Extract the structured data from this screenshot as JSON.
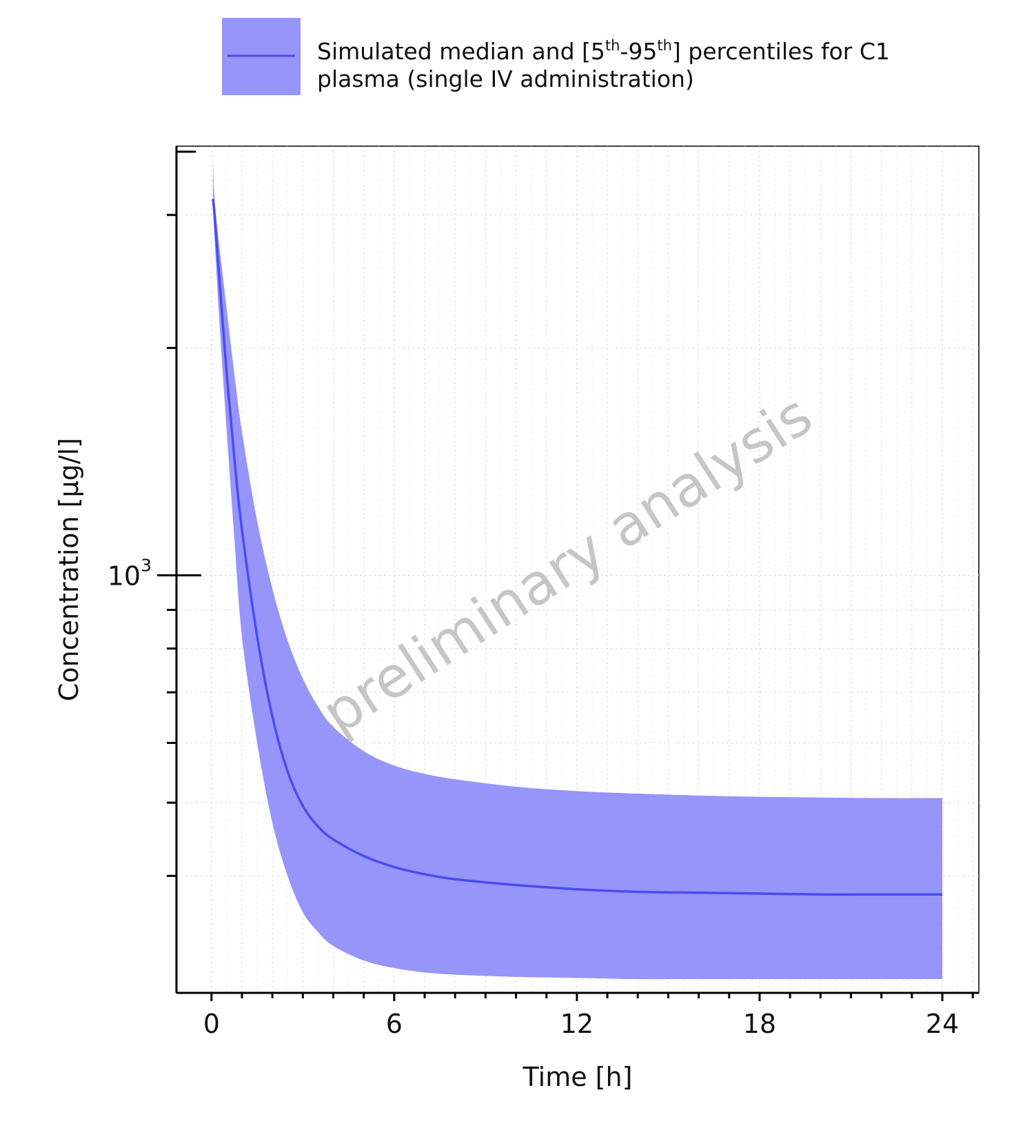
{
  "chart_data": {
    "type": "area",
    "xlabel": "Time [h]",
    "ylabel": "Concentration [µg/l]",
    "xlim": [
      -1.15,
      25.2
    ],
    "ylim": [
      280,
      3700
    ],
    "yscale": "log",
    "x_ticks": [
      0,
      6,
      12,
      18,
      24
    ],
    "x_minor_step": 1,
    "y_major_ticks": [
      {
        "value": 1000,
        "base": "10",
        "exponent": "3"
      }
    ],
    "y_minor_ticks": [
      400,
      500,
      600,
      700,
      800,
      900,
      2000,
      3000
    ],
    "grid": true,
    "legend": {
      "position": "top",
      "line1_prefix": "Simulated median and [5",
      "sup1": "th",
      "line1_mid": "-95",
      "sup2": "th",
      "line1_suffix": "] percentiles for C1",
      "line2": "plasma (single IV administration)"
    },
    "watermark": "preliminary analysis",
    "colors": {
      "median_line": "#4b4bf0",
      "band_fill": "#9595fa",
      "axis": "#000000",
      "grid": "#cfcfcf"
    },
    "series": [
      {
        "role": "median",
        "x": [
          0.05,
          0.1,
          0.25,
          0.5,
          0.75,
          1,
          1.5,
          2,
          2.5,
          3,
          3.5,
          4,
          5,
          6,
          7,
          8,
          10,
          12,
          14,
          16,
          18,
          20,
          22,
          24
        ],
        "values": [
          3150,
          3000,
          2500,
          1850,
          1430,
          1150,
          830,
          650,
          550,
          495,
          465,
          447,
          425,
          411,
          402,
          396,
          389,
          384,
          381,
          380,
          379,
          378,
          378,
          378
        ]
      },
      {
        "role": "p95",
        "x": [
          0.05,
          0.1,
          0.25,
          0.5,
          0.75,
          1,
          1.5,
          2,
          2.5,
          3,
          3.5,
          4,
          5,
          6,
          7,
          8,
          10,
          12,
          14,
          16,
          18,
          20,
          22,
          24
        ],
        "values": [
          3550,
          3150,
          2750,
          2250,
          1850,
          1550,
          1180,
          960,
          820,
          730,
          670,
          630,
          585,
          560,
          546,
          537,
          525,
          518,
          514,
          511,
          509,
          508,
          507,
          507
        ]
      },
      {
        "role": "p5",
        "x": [
          0.05,
          0.1,
          0.25,
          0.5,
          0.75,
          1,
          1.5,
          2,
          2.5,
          3,
          3.5,
          4,
          5,
          6,
          7,
          8,
          10,
          12,
          14,
          16,
          18,
          20,
          22,
          24
        ],
        "values": [
          3100,
          2800,
          2200,
          1550,
          1120,
          830,
          600,
          470,
          400,
          358,
          337,
          323,
          309,
          302,
          298,
          296,
          294,
          293,
          292,
          292,
          292,
          292,
          292,
          292
        ]
      }
    ]
  }
}
